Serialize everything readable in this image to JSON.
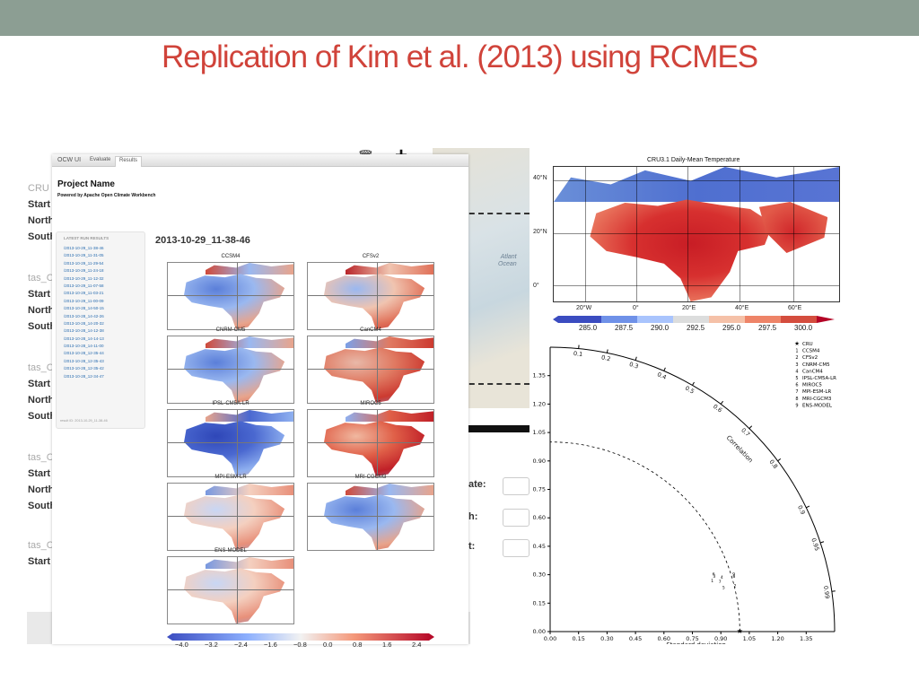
{
  "slide": {
    "title": "Replication of Kim et al. (2013) using RCMES"
  },
  "background_app": {
    "rows": [
      {
        "text": "CRU",
        "type": "label"
      },
      {
        "text": "Start",
        "type": "row"
      },
      {
        "text": "North",
        "type": "row"
      },
      {
        "text": "South",
        "type": "row"
      },
      {
        "text": "tas_C",
        "type": "label"
      },
      {
        "text": "Start",
        "type": "row"
      },
      {
        "text": "North",
        "type": "row"
      },
      {
        "text": "South",
        "type": "row"
      },
      {
        "text": "tas_C",
        "type": "label"
      },
      {
        "text": "Start",
        "type": "row"
      },
      {
        "text": "North",
        "type": "row"
      },
      {
        "text": "South",
        "type": "row"
      },
      {
        "text": "tas_C",
        "type": "label"
      },
      {
        "text": "Start",
        "type": "row"
      },
      {
        "text": "North",
        "type": "row"
      },
      {
        "text": "South",
        "type": "row"
      },
      {
        "text": "tas_C",
        "type": "label"
      },
      {
        "text": "Start",
        "type": "row"
      }
    ],
    "form_labels": [
      "ate:",
      "h:",
      "t:"
    ],
    "map_label": "Atlant\nOcean",
    "icons": [
      "trash-icon",
      "plus-icon"
    ]
  },
  "ocw": {
    "brand": "OCW UI",
    "tabs": [
      {
        "label": "Evaluate",
        "active": false
      },
      {
        "label": "Results",
        "active": true
      }
    ],
    "project_name": "Project Name",
    "powered_by": "Powered by Apache Open Climate Workbench",
    "sidebar": {
      "header": "LATEST RUN RESULTS",
      "runs": [
        "/2013-10-29_11-38-46",
        "/2013-10-29_11-31-05",
        "/2013-10-29_11-29-54",
        "/2013-10-29_11-24-18",
        "/2013-10-29_11-12-32",
        "/2013-10-29_11-07-58",
        "/2013-10-29_11-03-21",
        "/2013-10-29_11-00-09",
        "/2013-10-28_14-50-15",
        "/2013-10-28_14-42-26",
        "/2013-10-28_14-20-32",
        "/2013-10-28_14-12-38",
        "/2013-10-28_14-14-13",
        "/2013-10-28_14-11-00",
        "/2013-10-28_12-35-44",
        "/2013-10-28_12-35-43",
        "/2013-10-28_12-35-42",
        "/2013-10-28_12-34-47"
      ],
      "footer": "result ID: 2013-10-29_11-38-46"
    },
    "run_title": "2013-10-29_11-38-46",
    "panels": [
      {
        "name": "CCSM4",
        "palette": "cool"
      },
      {
        "name": "CFSv2",
        "palette": "mixed"
      },
      {
        "name": "CNRM-CM5",
        "palette": "cool"
      },
      {
        "name": "CanCM4",
        "palette": "warm"
      },
      {
        "name": "IPSL-CM5A-LR",
        "palette": "cold"
      },
      {
        "name": "MIROC5",
        "palette": "hot"
      },
      {
        "name": "MPI-ESM-LR",
        "palette": "mild"
      },
      {
        "name": "MRI-CGCM3",
        "palette": "cool"
      },
      {
        "name": "ENS-MODEL",
        "palette": "mild"
      }
    ],
    "colorbar_ticks": [
      "−4.0",
      "−3.2",
      "−2.4",
      "−1.6",
      "−0.8",
      "0.0",
      "0.8",
      "1.6",
      "2.4"
    ]
  },
  "cru_map": {
    "title": "CRU3.1 Daily-Mean Temperature",
    "y_ticks": [
      "40°N",
      "20°N",
      "0°"
    ],
    "x_ticks": [
      "20°W",
      "0°",
      "20°E",
      "40°E",
      "60°E"
    ],
    "colorbar_ticks": [
      "285.0",
      "287.5",
      "290.0",
      "292.5",
      "295.0",
      "297.5",
      "300.0"
    ]
  },
  "chart_data": {
    "type": "scatter",
    "subtype": "taylor-diagram",
    "xlabel": "Standard deviation",
    "x_ticks": [
      "0.00",
      "0.15",
      "0.30",
      "0.45",
      "0.60",
      "0.75",
      "0.90",
      "1.05",
      "1.20",
      "1.35"
    ],
    "y_ticks": [
      "0.00",
      "0.15",
      "0.30",
      "0.45",
      "0.60",
      "0.75",
      "0.90",
      "1.05",
      "1.20",
      "1.35"
    ],
    "xlim": [
      0,
      1.5
    ],
    "ylim": [
      0,
      1.5
    ],
    "correlation_label": "Correlation",
    "correlation_ticks": [
      0.1,
      0.2,
      0.3,
      0.4,
      0.5,
      0.6,
      0.7,
      0.8,
      0.9,
      0.95,
      0.99
    ],
    "correlation_tick_labels": [
      "0.1",
      "0.2",
      "0.3",
      "0.4",
      "0.5",
      "0.6",
      "0.7",
      "0.8",
      "0.9",
      "0.95",
      "0.99"
    ],
    "reference_std": 1.0,
    "legend": [
      {
        "marker": "★",
        "name": "CRU"
      },
      {
        "marker": "1",
        "name": "CCSM4"
      },
      {
        "marker": "2",
        "name": "CFSv2"
      },
      {
        "marker": "3",
        "name": "CNRM-CM5"
      },
      {
        "marker": "4",
        "name": "CanCM4"
      },
      {
        "marker": "5",
        "name": "IPSL-CM5A-LR"
      },
      {
        "marker": "6",
        "name": "MIROC5"
      },
      {
        "marker": "7",
        "name": "MPI-ESM-LR"
      },
      {
        "marker": "8",
        "name": "MRI-CGCM3"
      },
      {
        "marker": "9",
        "name": "ENS-MODEL"
      }
    ],
    "points": [
      {
        "label": "1",
        "x": 0.855,
        "y": 0.26
      },
      {
        "label": "2",
        "x": 0.975,
        "y": 0.235
      },
      {
        "label": "3",
        "x": 0.865,
        "y": 0.285
      },
      {
        "label": "4",
        "x": 0.905,
        "y": 0.28
      },
      {
        "label": "5",
        "x": 0.915,
        "y": 0.225
      },
      {
        "label": "6",
        "x": 0.862,
        "y": 0.295
      },
      {
        "label": "7",
        "x": 0.895,
        "y": 0.255
      },
      {
        "label": "8",
        "x": 0.97,
        "y": 0.285
      },
      {
        "label": "9",
        "x": 0.968,
        "y": 0.295
      }
    ]
  }
}
